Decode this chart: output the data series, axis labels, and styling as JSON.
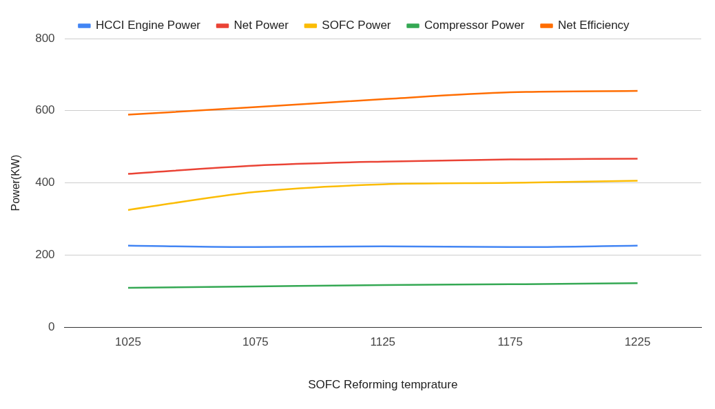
{
  "chart_data": {
    "type": "line",
    "xlabel": "SOFC Reforming temprature",
    "ylabel": "Power(KW)",
    "categories": [
      "1025",
      "1075",
      "1125",
      "1175",
      "1225"
    ],
    "series": [
      {
        "name": "HCCI Engine Power",
        "color": "#4285f4",
        "values": [
          226,
          222,
          224,
          222,
          226
        ]
      },
      {
        "name": "Net Power",
        "color": "#ea4335",
        "values": [
          425,
          448,
          459,
          465,
          467
        ]
      },
      {
        "name": "SOFC Power",
        "color": "#fbbc04",
        "values": [
          325,
          375,
          396,
          400,
          406
        ]
      },
      {
        "name": "Compressor Power",
        "color": "#34a853",
        "values": [
          109,
          113,
          117,
          119,
          122
        ]
      },
      {
        "name": "Net Efficiency",
        "color": "#ff6d01",
        "values": [
          589,
          610,
          632,
          651,
          655
        ]
      }
    ],
    "ylim": [
      0,
      800
    ],
    "yticks": [
      0,
      200,
      400,
      600,
      800
    ],
    "grid": "y",
    "legend": "top",
    "marker": "none",
    "line_style": "solid"
  }
}
